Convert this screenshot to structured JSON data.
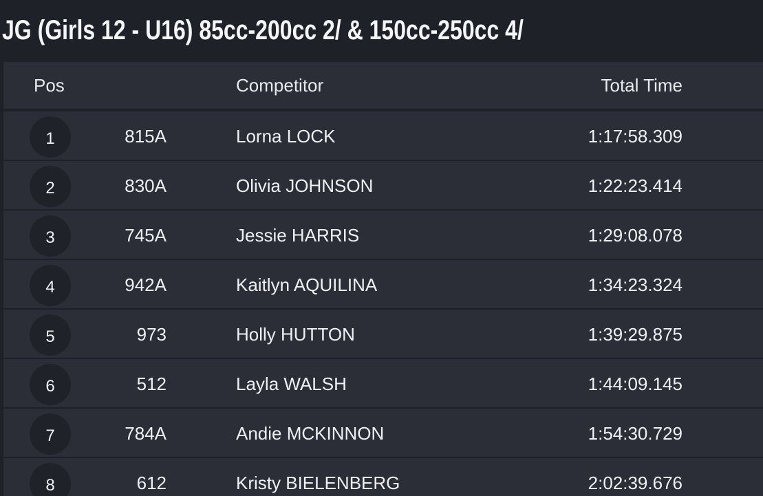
{
  "header": {
    "title": "JG (Girls 12 - U16) 85cc-200cc 2/ & 150cc-250cc 4/"
  },
  "table": {
    "columns": [
      "Pos",
      "Competitor",
      "Total Time"
    ],
    "rows": [
      [
        "1",
        "815A",
        "Lorna LOCK",
        "1:17:58.309"
      ],
      [
        "2",
        "830A",
        "Olivia JOHNSON",
        "1:22:23.414"
      ],
      [
        "3",
        "745A",
        "Jessie HARRIS",
        "1:29:08.078"
      ],
      [
        "4",
        "942A",
        "Kaitlyn AQUILINA",
        "1:34:23.324"
      ],
      [
        "5",
        "973",
        "Holly HUTTON",
        "1:39:29.875"
      ],
      [
        "6",
        "512",
        "Layla WALSH",
        "1:44:09.145"
      ],
      [
        "7",
        "784A",
        "Andie MCKINNON",
        "1:54:30.729"
      ],
      [
        "8",
        "612",
        "Kristy BIELENBERG",
        "2:02:39.676"
      ]
    ]
  }
}
